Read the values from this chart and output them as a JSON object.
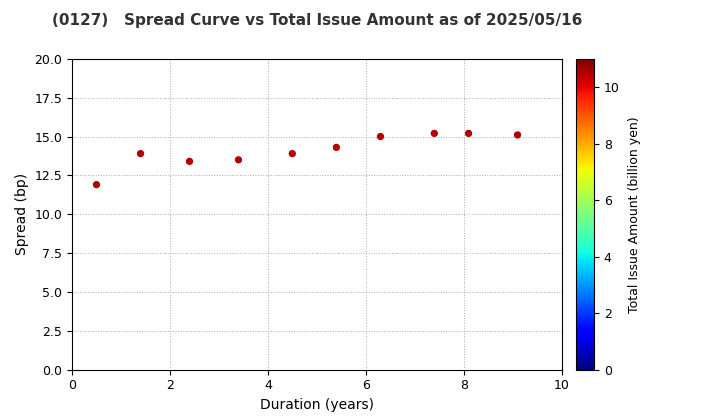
{
  "title": "(0127)   Spread Curve vs Total Issue Amount as of 2025/05/16",
  "xlabel": "Duration (years)",
  "ylabel": "Spread (bp)",
  "colorbar_label": "Total Issue Amount (billion yen)",
  "xlim": [
    0,
    10
  ],
  "ylim": [
    0.0,
    20.0
  ],
  "yticks": [
    0.0,
    2.5,
    5.0,
    7.5,
    10.0,
    12.5,
    15.0,
    17.5,
    20.0
  ],
  "xticks": [
    0,
    2,
    4,
    6,
    8,
    10
  ],
  "colorbar_range": [
    0,
    11
  ],
  "colorbar_ticks": [
    0,
    2,
    4,
    6,
    8,
    10
  ],
  "points": [
    {
      "duration": 0.5,
      "spread": 11.9,
      "amount": 10.5
    },
    {
      "duration": 1.4,
      "spread": 13.9,
      "amount": 10.5
    },
    {
      "duration": 2.4,
      "spread": 13.4,
      "amount": 10.5
    },
    {
      "duration": 3.4,
      "spread": 13.5,
      "amount": 10.5
    },
    {
      "duration": 4.5,
      "spread": 13.9,
      "amount": 10.5
    },
    {
      "duration": 5.4,
      "spread": 14.3,
      "amount": 10.5
    },
    {
      "duration": 6.3,
      "spread": 15.0,
      "amount": 10.5
    },
    {
      "duration": 7.4,
      "spread": 15.2,
      "amount": 10.5
    },
    {
      "duration": 8.1,
      "spread": 15.2,
      "amount": 10.5
    },
    {
      "duration": 9.1,
      "spread": 15.1,
      "amount": 10.5
    }
  ],
  "marker_size": 18,
  "background_color": "#ffffff",
  "grid_color": "#aaaaaa",
  "title_fontsize": 11,
  "axis_label_fontsize": 10,
  "tick_fontsize": 9,
  "colorbar_label_fontsize": 9
}
